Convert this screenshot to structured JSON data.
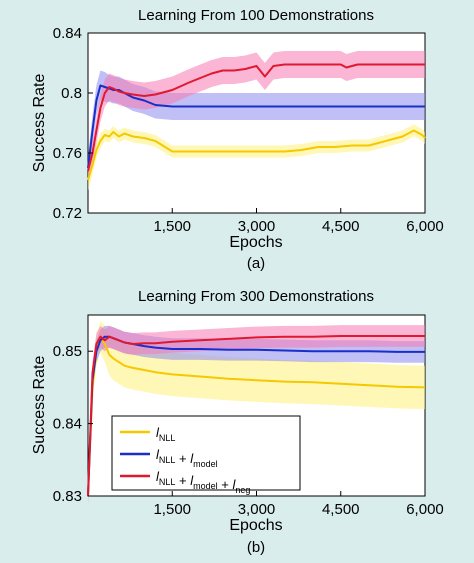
{
  "chart_data": [
    {
      "type": "line",
      "title": "Learning From 100 Demonstrations",
      "xlabel": "Epochs",
      "ylabel": "Success Rate",
      "caption": "(a)",
      "xlim": [
        0,
        6000
      ],
      "ylim": [
        0.72,
        0.84
      ],
      "xticks": [
        1500,
        3000,
        4500,
        6000
      ],
      "xtick_labels": [
        "1,500",
        "3,000",
        "4,500",
        "6,000"
      ],
      "yticks": [
        0.72,
        0.76,
        0.8,
        0.84
      ],
      "ytick_labels": [
        "0.72",
        "0.76",
        "0.8",
        "0.84"
      ],
      "grid": false,
      "series": [
        {
          "color": "#f5c800",
          "band_color": "#fff07a",
          "x": [
            0,
            80,
            150,
            220,
            300,
            380,
            450,
            550,
            650,
            800,
            1000,
            1200,
            1500,
            1800,
            2000,
            2500,
            3000,
            3500,
            3800,
            4100,
            4400,
            4700,
            5000,
            5200,
            5400,
            5600,
            5800,
            5950,
            6000
          ],
          "y": [
            0.742,
            0.752,
            0.762,
            0.768,
            0.772,
            0.771,
            0.774,
            0.771,
            0.773,
            0.771,
            0.77,
            0.768,
            0.761,
            0.761,
            0.761,
            0.761,
            0.761,
            0.761,
            0.762,
            0.764,
            0.764,
            0.765,
            0.765,
            0.767,
            0.769,
            0.771,
            0.775,
            0.772,
            0.77
          ],
          "band": [
            0.007,
            0.006,
            0.005,
            0.005,
            0.004,
            0.004,
            0.004,
            0.004,
            0.004,
            0.004,
            0.004,
            0.004,
            0.004,
            0.004,
            0.004,
            0.004,
            0.004,
            0.004,
            0.004,
            0.004,
            0.004,
            0.004,
            0.004,
            0.004,
            0.004,
            0.004,
            0.004,
            0.004,
            0.004
          ]
        },
        {
          "color": "#1a2ec8",
          "band_color": "#8c8cf0",
          "x": [
            0,
            80,
            150,
            220,
            300,
            380,
            450,
            550,
            650,
            800,
            1000,
            1200,
            1500,
            1800,
            2000,
            2500,
            3000,
            3500,
            4000,
            4500,
            5000,
            5500,
            6000
          ],
          "y": [
            0.75,
            0.775,
            0.795,
            0.805,
            0.804,
            0.803,
            0.802,
            0.802,
            0.8,
            0.797,
            0.795,
            0.792,
            0.791,
            0.791,
            0.791,
            0.791,
            0.791,
            0.791,
            0.791,
            0.791,
            0.791,
            0.791,
            0.791
          ],
          "band": [
            0.008,
            0.01,
            0.01,
            0.01,
            0.01,
            0.009,
            0.009,
            0.009,
            0.009,
            0.009,
            0.009,
            0.009,
            0.009,
            0.009,
            0.009,
            0.009,
            0.009,
            0.009,
            0.009,
            0.009,
            0.009,
            0.009,
            0.009
          ]
        },
        {
          "color": "#e01830",
          "band_color": "#f57ab0",
          "x": [
            0,
            80,
            150,
            220,
            300,
            380,
            450,
            550,
            650,
            800,
            1000,
            1200,
            1500,
            1800,
            2000,
            2200,
            2400,
            2600,
            2800,
            3000,
            3150,
            3300,
            3500,
            3800,
            4200,
            4500,
            4600,
            4800,
            5200,
            5600,
            6000
          ],
          "y": [
            0.748,
            0.76,
            0.775,
            0.79,
            0.8,
            0.804,
            0.803,
            0.801,
            0.8,
            0.799,
            0.798,
            0.799,
            0.802,
            0.807,
            0.81,
            0.813,
            0.815,
            0.815,
            0.816,
            0.818,
            0.811,
            0.818,
            0.819,
            0.819,
            0.819,
            0.819,
            0.817,
            0.819,
            0.819,
            0.819,
            0.819
          ],
          "band": [
            0.005,
            0.007,
            0.008,
            0.009,
            0.009,
            0.009,
            0.009,
            0.009,
            0.009,
            0.009,
            0.009,
            0.009,
            0.009,
            0.009,
            0.009,
            0.009,
            0.009,
            0.009,
            0.009,
            0.009,
            0.009,
            0.009,
            0.009,
            0.009,
            0.009,
            0.009,
            0.009,
            0.009,
            0.009,
            0.009,
            0.009
          ]
        }
      ]
    },
    {
      "type": "line",
      "title": "Learning From 300 Demonstrations",
      "xlabel": "Epochs",
      "ylabel": "Success Rate",
      "caption": "(b)",
      "xlim": [
        0,
        6000
      ],
      "ylim": [
        0.83,
        0.855
      ],
      "xticks": [
        1500,
        3000,
        4500,
        6000
      ],
      "xtick_labels": [
        "1,500",
        "3,000",
        "4,500",
        "6,000"
      ],
      "yticks": [
        0.83,
        0.84,
        0.85
      ],
      "ytick_labels": [
        "0.83",
        "0.84",
        "0.85"
      ],
      "grid": false,
      "legend": {
        "position": "bottom-left",
        "entries": [
          {
            "color": "#f5c800",
            "parts": [
              [
                "l",
                "NLL"
              ]
            ]
          },
          {
            "color": "#1a2ec8",
            "parts": [
              [
                "l",
                "NLL"
              ],
              [
                " + ",
                ""
              ],
              [
                "l",
                "model"
              ]
            ]
          },
          {
            "color": "#e01830",
            "parts": [
              [
                "l",
                "NLL"
              ],
              [
                " + ",
                ""
              ],
              [
                "l",
                "model"
              ],
              [
                " + ",
                ""
              ],
              [
                "l",
                "neg"
              ]
            ]
          }
        ]
      },
      "series": [
        {
          "color": "#f5c800",
          "band_color": "#fff07a",
          "x": [
            0,
            80,
            150,
            220,
            300,
            380,
            450,
            550,
            650,
            800,
            1000,
            1200,
            1500,
            2000,
            2500,
            3000,
            3500,
            4000,
            4500,
            5000,
            5500,
            6000
          ],
          "y": [
            0.83,
            0.845,
            0.85,
            0.852,
            0.851,
            0.8495,
            0.849,
            0.8485,
            0.848,
            0.8477,
            0.8474,
            0.8471,
            0.8468,
            0.8465,
            0.8462,
            0.846,
            0.8458,
            0.8457,
            0.8455,
            0.8453,
            0.8451,
            0.845
          ],
          "band": [
            0.001,
            0.002,
            0.002,
            0.0022,
            0.0025,
            0.0028,
            0.003,
            0.003,
            0.003,
            0.003,
            0.003,
            0.003,
            0.003,
            0.003,
            0.003,
            0.003,
            0.003,
            0.003,
            0.003,
            0.003,
            0.003,
            0.003
          ]
        },
        {
          "color": "#1a2ec8",
          "band_color": "#8c8cf0",
          "x": [
            0,
            80,
            150,
            220,
            300,
            380,
            450,
            550,
            650,
            800,
            1000,
            1200,
            1500,
            2000,
            2500,
            3000,
            3500,
            4000,
            4500,
            5000,
            5500,
            6000
          ],
          "y": [
            0.83,
            0.846,
            0.85,
            0.8515,
            0.852,
            0.852,
            0.8518,
            0.8515,
            0.8512,
            0.851,
            0.8507,
            0.8505,
            0.8503,
            0.8503,
            0.8502,
            0.8502,
            0.8501,
            0.85,
            0.85,
            0.85,
            0.8499,
            0.8499
          ],
          "band": [
            0.001,
            0.0015,
            0.0015,
            0.0015,
            0.0015,
            0.0015,
            0.0015,
            0.0015,
            0.0015,
            0.0015,
            0.0015,
            0.0015,
            0.0015,
            0.0015,
            0.0015,
            0.0015,
            0.0015,
            0.0015,
            0.0015,
            0.0015,
            0.0015,
            0.0015
          ]
        },
        {
          "color": "#e01830",
          "band_color": "#f57ab0",
          "x": [
            0,
            80,
            150,
            220,
            300,
            380,
            450,
            550,
            650,
            800,
            1000,
            1200,
            1500,
            2000,
            2500,
            3000,
            3500,
            4000,
            4500,
            5000,
            5500,
            6000
          ],
          "y": [
            0.83,
            0.847,
            0.851,
            0.852,
            0.8515,
            0.852,
            0.8518,
            0.8515,
            0.8512,
            0.851,
            0.8511,
            0.8511,
            0.8513,
            0.8515,
            0.8517,
            0.8519,
            0.852,
            0.852,
            0.8521,
            0.8521,
            0.8521,
            0.8521
          ],
          "band": [
            0.001,
            0.0015,
            0.0015,
            0.0015,
            0.0015,
            0.0015,
            0.0015,
            0.0015,
            0.0015,
            0.0015,
            0.0015,
            0.0015,
            0.0015,
            0.0015,
            0.0015,
            0.0015,
            0.0015,
            0.0015,
            0.0015,
            0.0015,
            0.0015,
            0.0015
          ]
        }
      ]
    }
  ]
}
